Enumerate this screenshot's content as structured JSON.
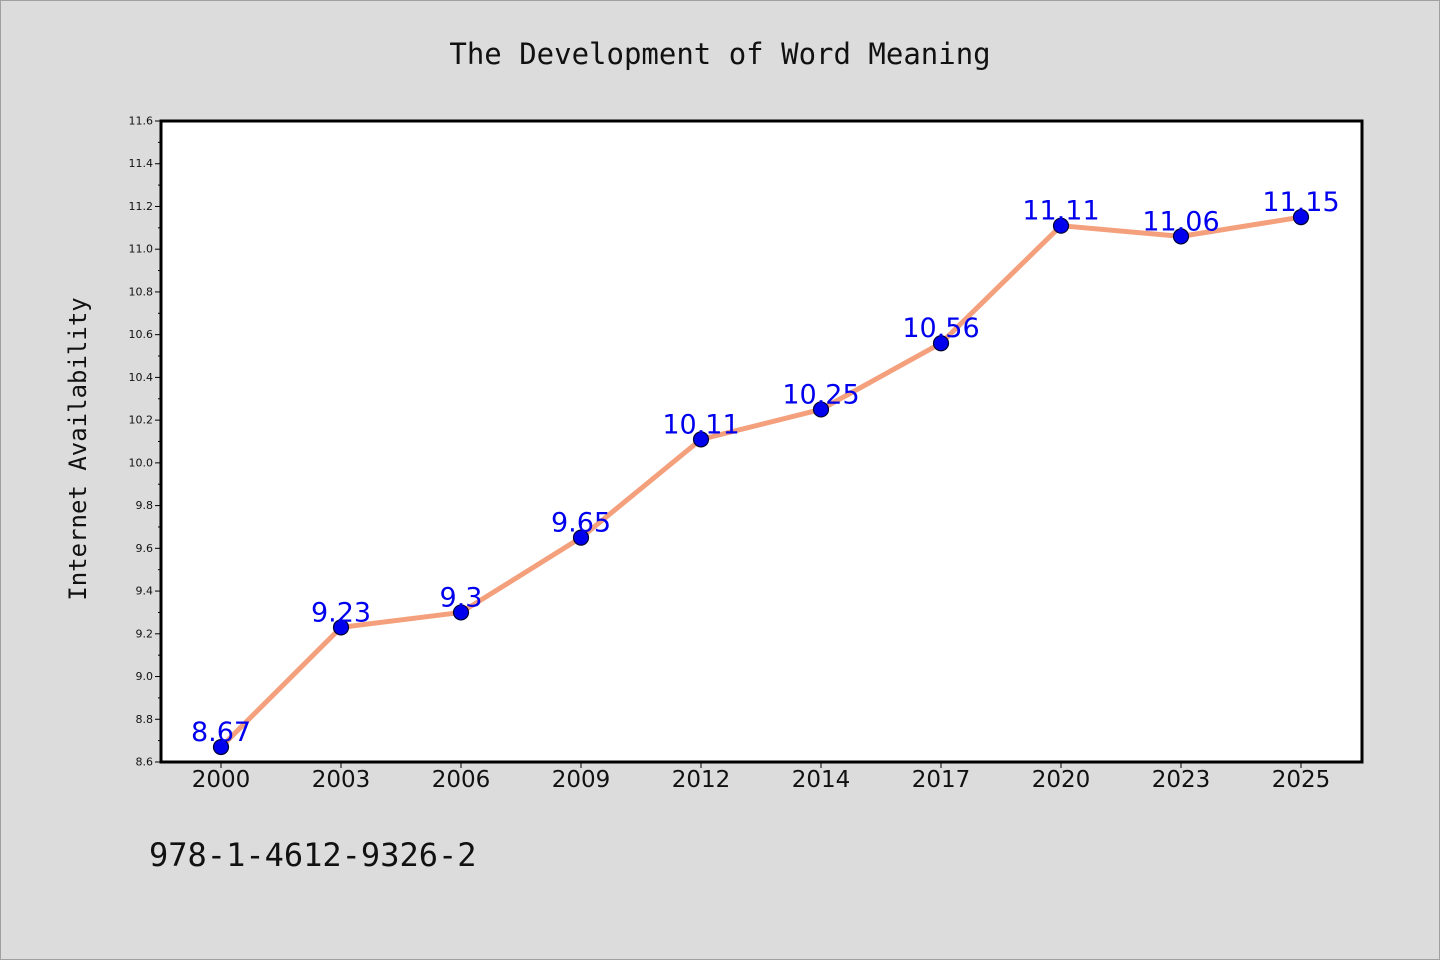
{
  "chart_data": {
    "type": "line",
    "title": "The Development of Word Meaning",
    "xlabel": "",
    "ylabel": "Internet Availability",
    "categories": [
      "2000",
      "2003",
      "2006",
      "2009",
      "2012",
      "2014",
      "2017",
      "2020",
      "2023",
      "2025"
    ],
    "values": [
      8.67,
      9.23,
      9.3,
      9.65,
      10.11,
      10.25,
      10.56,
      11.11,
      11.06,
      11.15
    ],
    "data_labels": [
      "8.67",
      "9.23",
      "9.3",
      "9.65",
      "10.11",
      "10.25",
      "10.56",
      "11.11",
      "11.06",
      "11.15"
    ],
    "ylim": [
      8.6,
      11.6
    ],
    "yticks": [
      "8.6",
      "8.8",
      "9.0",
      "9.2",
      "9.4",
      "9.6",
      "9.8",
      "10.0",
      "10.2",
      "10.4",
      "10.6",
      "10.8",
      "11.0",
      "11.2",
      "11.4",
      "11.6"
    ],
    "grid": false,
    "legend": "none",
    "colors": {
      "line": "#f4a07c",
      "marker": "#0000ee",
      "data_label": "#0000ee",
      "plot_background": "#ffffff",
      "figure_background": "#dcdcdc"
    }
  },
  "footer": {
    "isbn": "978-1-4612-9326-2"
  }
}
